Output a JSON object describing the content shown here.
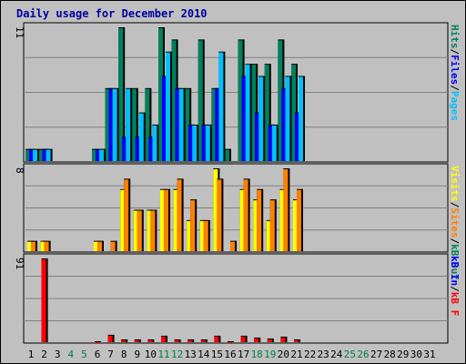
{
  "chart_data": [
    {
      "type": "bar",
      "title": "Daily usage for December 2010",
      "categories": [
        "1",
        "2",
        "3",
        "4",
        "5",
        "6",
        "7",
        "8",
        "9",
        "10",
        "11",
        "12",
        "13",
        "14",
        "15",
        "16",
        "17",
        "18",
        "19",
        "20",
        "21",
        "22",
        "23",
        "24",
        "25",
        "26",
        "27",
        "28",
        "29",
        "30",
        "31"
      ],
      "weekend_days": [
        "4",
        "5",
        "11",
        "12",
        "18",
        "19",
        "25",
        "26"
      ],
      "colors": {
        "title": "#0000a0",
        "weekday_label": "#000000",
        "weekend_label": "#008040",
        "background": "#c0c0c0",
        "gridline": "#808080"
      },
      "panels": [
        {
          "id": "hits-files-pages",
          "max_label": "11",
          "ylim": [
            0,
            11
          ],
          "legend": [
            {
              "text": "Hits",
              "color": "#00805c"
            },
            {
              "text": "/",
              "color": "#000000"
            },
            {
              "text": "Files",
              "color": "#0000ff"
            },
            {
              "text": "/",
              "color": "#000000"
            },
            {
              "text": "Pages",
              "color": "#00c0ff"
            }
          ],
          "series": [
            {
              "name": "Hits",
              "color": "#00805c",
              "values": [
                1,
                1,
                0,
                0,
                0,
                1,
                6,
                11,
                6,
                6,
                11,
                10,
                6,
                10,
                6,
                1,
                10,
                8,
                8,
                10,
                8,
                0,
                0,
                0,
                0,
                0,
                0,
                0,
                0,
                0,
                0
              ]
            },
            {
              "name": "Files",
              "color": "#0000ff",
              "values": [
                1,
                1,
                0,
                0,
                0,
                1,
                6,
                2,
                2,
                2,
                7,
                6,
                3,
                3,
                6,
                0,
                7,
                4,
                3,
                6,
                4,
                0,
                0,
                0,
                0,
                0,
                0,
                0,
                0,
                0,
                0
              ]
            },
            {
              "name": "Pages",
              "color": "#00c0ff",
              "values": [
                1,
                1,
                0,
                0,
                0,
                1,
                6,
                6,
                4,
                3,
                9,
                6,
                3,
                3,
                9,
                0,
                8,
                7,
                3,
                7,
                7,
                0,
                0,
                0,
                0,
                0,
                0,
                0,
                0,
                0,
                0
              ]
            }
          ]
        },
        {
          "id": "visits-sites",
          "max_label": "8",
          "ylim": [
            0,
            8
          ],
          "legend": [
            {
              "text": "Visits",
              "color": "#ffff00"
            },
            {
              "text": "/",
              "color": "#000000"
            },
            {
              "text": "Sites",
              "color": "#ff8000"
            },
            {
              "text": "/",
              "color": "#000000"
            },
            {
              "text": "kB Out",
              "color": "#00805c"
            }
          ],
          "series": [
            {
              "name": "Visits",
              "color": "#ffff00",
              "values": [
                1,
                1,
                0,
                0,
                0,
                1,
                0,
                6,
                4,
                4,
                6,
                6,
                3,
                3,
                8,
                0,
                6,
                5,
                3,
                6,
                5,
                0,
                0,
                0,
                0,
                0,
                0,
                0,
                0,
                0,
                0
              ]
            },
            {
              "name": "Sites",
              "color": "#ff8000",
              "values": [
                1,
                1,
                0,
                0,
                0,
                1,
                1,
                7,
                4,
                4,
                6,
                7,
                5,
                3,
                7,
                1,
                7,
                6,
                5,
                8,
                6,
                0,
                0,
                0,
                0,
                0,
                0,
                0,
                0,
                0,
                0
              ]
            }
          ]
        },
        {
          "id": "kbytes",
          "max_label": "91",
          "ylim": [
            0,
            91
          ],
          "legend": [
            {
              "text": "kB In",
              "color": "#0000ff"
            },
            {
              "text": "/",
              "color": "#000000"
            },
            {
              "text": "kB F",
              "color": "#ff0000"
            }
          ],
          "series": [
            {
              "name": "kB F",
              "color": "#ff0000",
              "values": [
                0,
                91,
                0,
                0,
                0,
                1,
                8,
                3,
                3,
                3,
                7,
                3,
                3,
                3,
                7,
                1,
                7,
                5,
                4,
                6,
                3,
                0,
                0,
                0,
                0,
                0,
                0,
                0,
                0,
                0,
                0
              ]
            }
          ]
        }
      ]
    }
  ]
}
